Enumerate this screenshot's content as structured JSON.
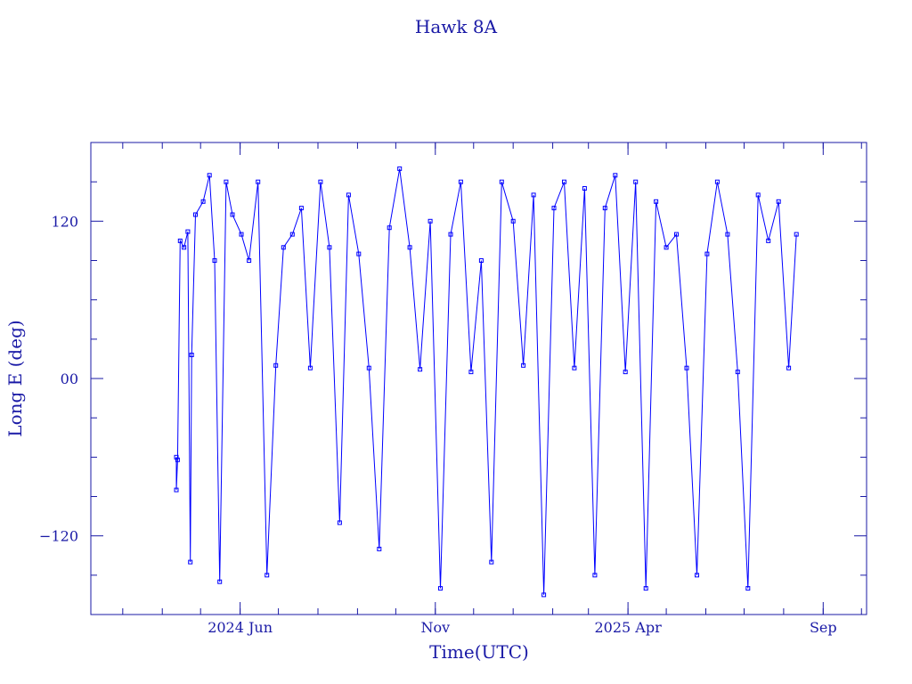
{
  "chart_data": {
    "type": "scatter",
    "title": "Hawk 8A",
    "xlabel": "Time(UTC)",
    "ylabel": "Long E (deg)",
    "xlim": [
      "2024-02-05",
      "2025-10-05"
    ],
    "ylim": [
      -180,
      180
    ],
    "x_ticks": [
      {
        "date": "2024-06-01",
        "label": "2024 Jun"
      },
      {
        "date": "2024-11-01",
        "label": "Nov"
      },
      {
        "date": "2025-04-01",
        "label": "2025 Apr"
      },
      {
        "date": "2025-09-01",
        "label": "Sep"
      }
    ],
    "y_ticks": [
      {
        "value": 120,
        "label": "120"
      },
      {
        "value": 0,
        "label": "00"
      },
      {
        "value": -120,
        "label": "−120"
      }
    ],
    "data_range": [
      "2024-04-12",
      "2025-08-11"
    ],
    "series": [
      {
        "marker": "open-square",
        "line": "connected",
        "color": "#0000ff",
        "points": [
          [
            "2024-04-12",
            -60
          ],
          [
            "2024-04-12",
            -85
          ],
          [
            "2024-04-13",
            -62
          ],
          [
            "2024-04-15",
            105
          ],
          [
            "2024-04-18",
            100
          ],
          [
            "2024-04-21",
            112
          ],
          [
            "2024-04-23",
            -140
          ],
          [
            "2024-04-24",
            18
          ],
          [
            "2024-04-27",
            125
          ],
          [
            "2024-05-03",
            135
          ],
          [
            "2024-05-08",
            155
          ],
          [
            "2024-05-12",
            90
          ],
          [
            "2024-05-16",
            -155
          ],
          [
            "2024-05-21",
            150
          ],
          [
            "2024-05-26",
            125
          ],
          [
            "2024-06-02",
            110
          ],
          [
            "2024-06-08",
            90
          ],
          [
            "2024-06-15",
            150
          ],
          [
            "2024-06-22",
            -150
          ],
          [
            "2024-06-29",
            10
          ],
          [
            "2024-07-05",
            100
          ],
          [
            "2024-07-12",
            110
          ],
          [
            "2024-07-19",
            130
          ],
          [
            "2024-07-26",
            8
          ],
          [
            "2024-08-03",
            150
          ],
          [
            "2024-08-10",
            100
          ],
          [
            "2024-08-18",
            -110
          ],
          [
            "2024-08-25",
            140
          ],
          [
            "2024-09-02",
            95
          ],
          [
            "2024-09-10",
            8
          ],
          [
            "2024-09-18",
            -130
          ],
          [
            "2024-09-26",
            115
          ],
          [
            "2024-10-04",
            160
          ],
          [
            "2024-10-12",
            100
          ],
          [
            "2024-10-20",
            7
          ],
          [
            "2024-10-28",
            120
          ],
          [
            "2024-11-05",
            -160
          ],
          [
            "2024-11-13",
            110
          ],
          [
            "2024-11-21",
            150
          ],
          [
            "2024-11-29",
            5
          ],
          [
            "2024-12-07",
            90
          ],
          [
            "2024-12-15",
            -140
          ],
          [
            "2024-12-23",
            150
          ],
          [
            "2025-01-01",
            120
          ],
          [
            "2025-01-09",
            10
          ],
          [
            "2025-01-17",
            140
          ],
          [
            "2025-01-25",
            -165
          ],
          [
            "2025-02-02",
            130
          ],
          [
            "2025-02-10",
            150
          ],
          [
            "2025-02-18",
            8
          ],
          [
            "2025-02-26",
            145
          ],
          [
            "2025-03-06",
            -150
          ],
          [
            "2025-03-14",
            130
          ],
          [
            "2025-03-22",
            155
          ],
          [
            "2025-03-30",
            5
          ],
          [
            "2025-04-07",
            150
          ],
          [
            "2025-04-15",
            -160
          ],
          [
            "2025-04-23",
            135
          ],
          [
            "2025-05-01",
            100
          ],
          [
            "2025-05-09",
            110
          ],
          [
            "2025-05-17",
            8
          ],
          [
            "2025-05-25",
            -150
          ],
          [
            "2025-06-02",
            95
          ],
          [
            "2025-06-10",
            150
          ],
          [
            "2025-06-18",
            110
          ],
          [
            "2025-06-26",
            5
          ],
          [
            "2025-07-04",
            -160
          ],
          [
            "2025-07-12",
            140
          ],
          [
            "2025-07-20",
            105
          ],
          [
            "2025-07-28",
            135
          ],
          [
            "2025-08-05",
            8
          ],
          [
            "2025-08-11",
            110
          ]
        ]
      }
    ],
    "grid": false,
    "legend": "none"
  }
}
